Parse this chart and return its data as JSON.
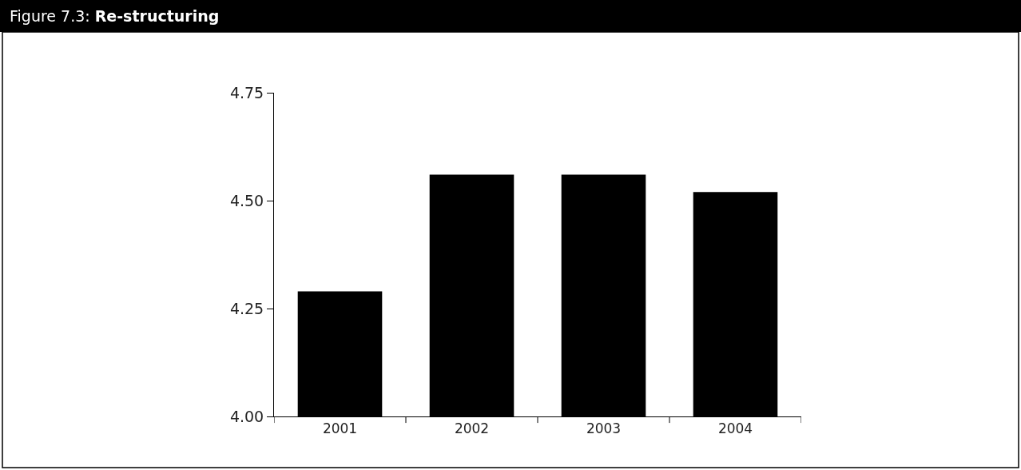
{
  "chart_data": {
    "type": "bar",
    "title": "Figure 7.3: Re-structuring",
    "categories": [
      "2001",
      "2002",
      "2003",
      "2004"
    ],
    "values": [
      4.29,
      4.56,
      4.56,
      4.52
    ],
    "color": "#000000",
    "ylim": [
      4.0,
      4.75
    ],
    "yticks": [
      {
        "value": 4.0,
        "label": "4.00"
      },
      {
        "value": 4.25,
        "label": "4.25"
      },
      {
        "value": 4.5,
        "label": "4.50"
      },
      {
        "value": 4.75,
        "label": "4.75"
      }
    ]
  }
}
